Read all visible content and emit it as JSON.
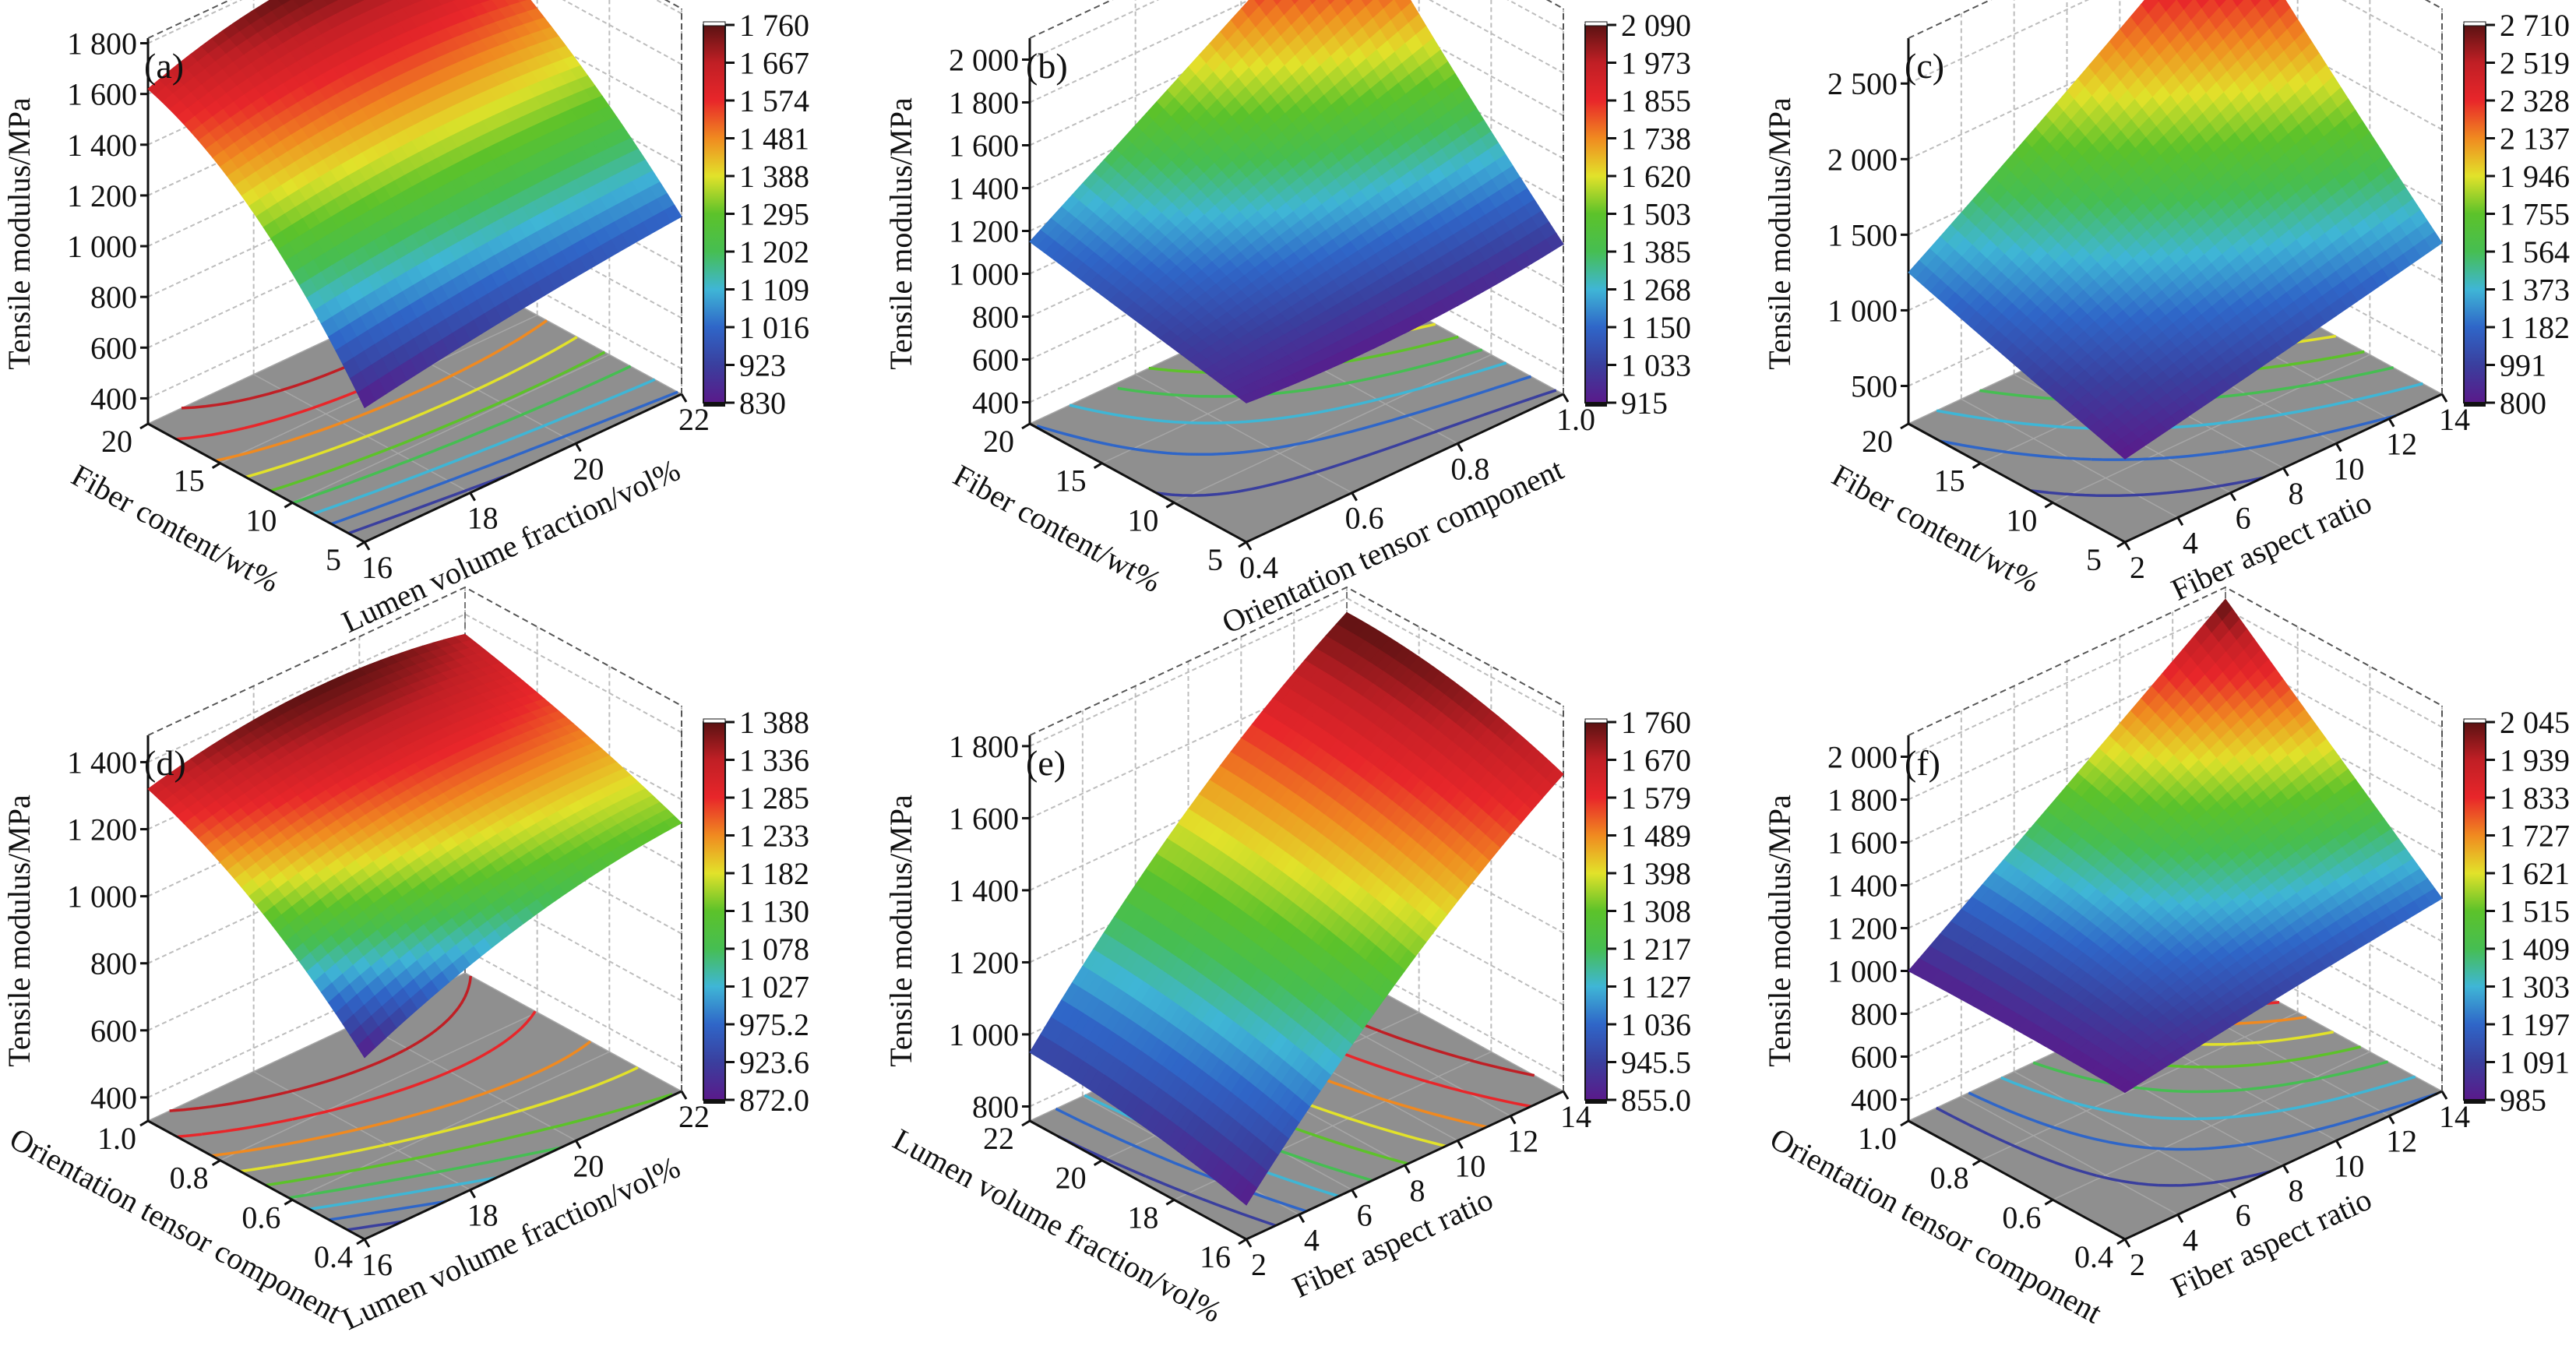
{
  "colormap": [
    "#5a1a8a",
    "#3a3f9e",
    "#2f66c8",
    "#3fb6d6",
    "#46be52",
    "#5cc22a",
    "#e2e22a",
    "#f08a20",
    "#e8262a",
    "#c01f25",
    "#5a1212"
  ],
  "floor_color": "#8f8f8f",
  "chart_data": [
    {
      "type": "surface",
      "panel_label": "(a)",
      "zlabel": "Tensile modulus/MPa",
      "ylabel": "Fiber content/wt%",
      "xlabel": "Lumen volume fraction/vol%",
      "xlim": [
        16,
        22
      ],
      "ylim": [
        5,
        20
      ],
      "zlim": [
        300,
        1820
      ],
      "xticks": [
        "16",
        "18",
        "20",
        "22"
      ],
      "yticks": [
        "5",
        "10",
        "15",
        "20"
      ],
      "zticks": [
        "400",
        "600",
        "800",
        "1 000",
        "1 200",
        "1 400",
        "1 600",
        "1 800"
      ],
      "colorbar": [
        "1 760",
        "1 667",
        "1 574",
        "1 481",
        "1 388",
        "1 295",
        "1 202",
        "1 109",
        "1 016",
        "923",
        "830"
      ],
      "surface_grid": [
        [
          830,
          930,
          1000
        ],
        [
          1350,
          1420,
          1400
        ],
        [
          1620,
          1760,
          1690
        ]
      ]
    },
    {
      "type": "surface",
      "panel_label": "(b)",
      "zlabel": "Tensile modulus/MPa",
      "ylabel": "Fiber content/wt%",
      "xlabel": "Orientation tensor component",
      "xlim": [
        0.4,
        1.0
      ],
      "ylim": [
        5,
        20
      ],
      "zlim": [
        300,
        2100
      ],
      "xticks": [
        "0.4",
        "0.6",
        "0.8",
        "1.0"
      ],
      "yticks": [
        "5",
        "10",
        "15",
        "20"
      ],
      "zticks": [
        "400",
        "600",
        "800",
        "1 000",
        "1 200",
        "1 400",
        "1 600",
        "1 800",
        "2 000"
      ],
      "colorbar": [
        "2 090",
        "1 973",
        "1 855",
        "1 738",
        "1 620",
        "1 503",
        "1 385",
        "1 268",
        "1 150",
        "1 033",
        "915"
      ],
      "surface_grid": [
        [
          950,
          930,
          1000
        ],
        [
          1050,
          1300,
          1520
        ],
        [
          1150,
          1620,
          2090
        ]
      ]
    },
    {
      "type": "surface",
      "panel_label": "(c)",
      "zlabel": "Tensile modulus/MPa",
      "ylabel": "Fiber content/wt%",
      "xlabel": "Fiber aspect ratio",
      "xlim": [
        2,
        14
      ],
      "ylim": [
        5,
        20
      ],
      "zlim": [
        250,
        2800
      ],
      "xticks": [
        "2",
        "4",
        "6",
        "8",
        "10",
        "12",
        "14"
      ],
      "yticks": [
        "5",
        "10",
        "15",
        "20"
      ],
      "zticks": [
        "500",
        "1 000",
        "1 500",
        "2 000",
        "2 500"
      ],
      "colorbar": [
        "2 710",
        "2 519",
        "2 328",
        "2 137",
        "1 946",
        "1 755",
        "1 564",
        "1 373",
        "1 182",
        "991",
        "800"
      ],
      "surface_grid": [
        [
          800,
          1020,
          1250
        ],
        [
          1020,
          1500,
          1960
        ],
        [
          1250,
          1960,
          2710
        ]
      ]
    },
    {
      "type": "surface",
      "panel_label": "(d)",
      "zlabel": "Tensile modulus/MPa",
      "ylabel": "Orientation tensor component",
      "xlabel": "Lumen volume fraction/vol%",
      "xlim": [
        16,
        22
      ],
      "ylim": [
        0.4,
        1.0
      ],
      "zlim": [
        330,
        1480
      ],
      "xticks": [
        "16",
        "18",
        "20",
        "22"
      ],
      "yticks": [
        "0.4",
        "0.6",
        "0.8",
        "1.0"
      ],
      "zticks": [
        "400",
        "600",
        "800",
        "1 000",
        "1 200",
        "1 400"
      ],
      "colorbar": [
        "1 388",
        "1 336",
        "1 285",
        "1 233",
        "1 182",
        "1 130",
        "1 078",
        "1 027",
        "975.2",
        "923.6",
        "872.0"
      ],
      "surface_grid": [
        [
          872,
          1050,
          1130
        ],
        [
          1150,
          1250,
          1250
        ],
        [
          1320,
          1388,
          1340
        ]
      ]
    },
    {
      "type": "surface",
      "panel_label": "(e)",
      "zlabel": "Tensile modulus/MPa",
      "ylabel": "Lumen volume fraction/vol%",
      "xlabel": "Fiber aspect ratio",
      "xlim": [
        2,
        14
      ],
      "ylim": [
        16,
        22
      ],
      "zlim": [
        760,
        1830
      ],
      "xticks": [
        "2",
        "4",
        "6",
        "8",
        "10",
        "12",
        "14"
      ],
      "yticks": [
        "16",
        "18",
        "20",
        "22"
      ],
      "zticks": [
        "800",
        "1 000",
        "1 200",
        "1 400",
        "1 600",
        "1 800"
      ],
      "colorbar": [
        "1 760",
        "1 670",
        "1 579",
        "1 489",
        "1 398",
        "1 308",
        "1 217",
        "1 127",
        "1 036",
        "945.5",
        "855.0"
      ],
      "surface_grid": [
        [
          855,
          1300,
          1640
        ],
        [
          920,
          1380,
          1730
        ],
        [
          950,
          1420,
          1760
        ]
      ]
    },
    {
      "type": "surface",
      "panel_label": "(f)",
      "zlabel": "Tensile modulus/MPa",
      "ylabel": "Orientation tensor component",
      "xlabel": "Fiber aspect ratio",
      "xlim": [
        2,
        14
      ],
      "ylim": [
        0.4,
        1.0
      ],
      "zlim": [
        300,
        2100
      ],
      "xticks": [
        "2",
        "4",
        "6",
        "8",
        "10",
        "12",
        "14"
      ],
      "yticks": [
        "0.4",
        "0.6",
        "0.8",
        "1.0"
      ],
      "zticks": [
        "400",
        "600",
        "800",
        "1 000",
        "1 200",
        "1 400",
        "1 600",
        "1 800",
        "2 000"
      ],
      "colorbar": [
        "2 045",
        "1 939",
        "1 833",
        "1 727",
        "1 621",
        "1 515",
        "1 409",
        "1 303",
        "1 197",
        "1 091",
        "985"
      ],
      "surface_grid": [
        [
          985,
          1100,
          1200
        ],
        [
          1000,
          1350,
          1620
        ],
        [
          1000,
          1520,
          2045
        ]
      ]
    }
  ]
}
